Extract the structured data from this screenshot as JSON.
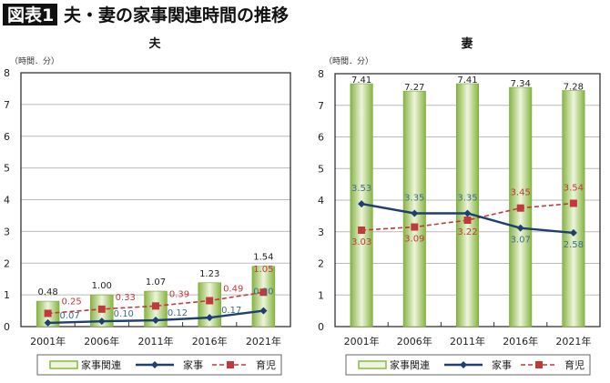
{
  "header": {
    "badge": "図表1",
    "title": "夫・妻の家事関連時間の推移"
  },
  "colors": {
    "bar": "#8cb84a",
    "bar_light": "#eef5dc",
    "housework": "#1f3f6e",
    "childcare": "#c0393b",
    "housework_label": "#3d6e8a"
  },
  "chart_data": [
    {
      "type": "bar+line",
      "title": "夫",
      "ylabel": "（時間．分）",
      "ylim": [
        0,
        8
      ],
      "yticks": [
        "0",
        "1",
        "2",
        "3",
        "4",
        "5",
        "6",
        "7",
        "8"
      ],
      "categories": [
        "2001年",
        "2006年",
        "2011年",
        "2016年",
        "2021年"
      ],
      "legend": [
        "家事関連",
        "家事",
        "育児"
      ],
      "legend_position": "bottom",
      "series": [
        {
          "name": "家事関連",
          "kind": "bar",
          "labels": [
            "0.48",
            "1.00",
            "1.07",
            "1.23",
            "1.54"
          ],
          "values_hours": [
            0.8,
            1.0,
            1.117,
            1.383,
            1.9
          ]
        },
        {
          "name": "家事",
          "kind": "line",
          "labels": [
            "0.07",
            "0.10",
            "0.12",
            "0.17",
            "0.30"
          ],
          "values_hours": [
            0.117,
            0.167,
            0.2,
            0.283,
            0.5
          ]
        },
        {
          "name": "育児",
          "kind": "dashed-line",
          "labels": [
            "0.25",
            "0.33",
            "0.39",
            "0.49",
            "1.05"
          ],
          "values_hours": [
            0.417,
            0.55,
            0.65,
            0.817,
            1.083
          ]
        }
      ]
    },
    {
      "type": "bar+line",
      "title": "妻",
      "ylabel": "（時間．分）",
      "ylim": [
        0,
        8
      ],
      "yticks": [
        "0",
        "1",
        "2",
        "3",
        "4",
        "5",
        "6",
        "7",
        "8"
      ],
      "categories": [
        "2001年",
        "2006年",
        "2011年",
        "2016年",
        "2021年"
      ],
      "legend": [
        "家事関連",
        "家事",
        "育児"
      ],
      "legend_position": "bottom",
      "series": [
        {
          "name": "家事関連",
          "kind": "bar",
          "labels": [
            "7.41",
            "7.27",
            "7.41",
            "7.34",
            "7.28"
          ],
          "values_hours": [
            7.683,
            7.45,
            7.683,
            7.567,
            7.467
          ]
        },
        {
          "name": "家事",
          "kind": "line",
          "labels": [
            "3.53",
            "3.35",
            "3.35",
            "3.07",
            "2.58"
          ],
          "values_hours": [
            3.883,
            3.583,
            3.583,
            3.117,
            2.967
          ]
        },
        {
          "name": "育児",
          "kind": "dashed-line",
          "labels": [
            "3.03",
            "3.09",
            "3.22",
            "3.45",
            "3.54"
          ],
          "values_hours": [
            3.05,
            3.15,
            3.367,
            3.75,
            3.9
          ]
        }
      ]
    }
  ]
}
